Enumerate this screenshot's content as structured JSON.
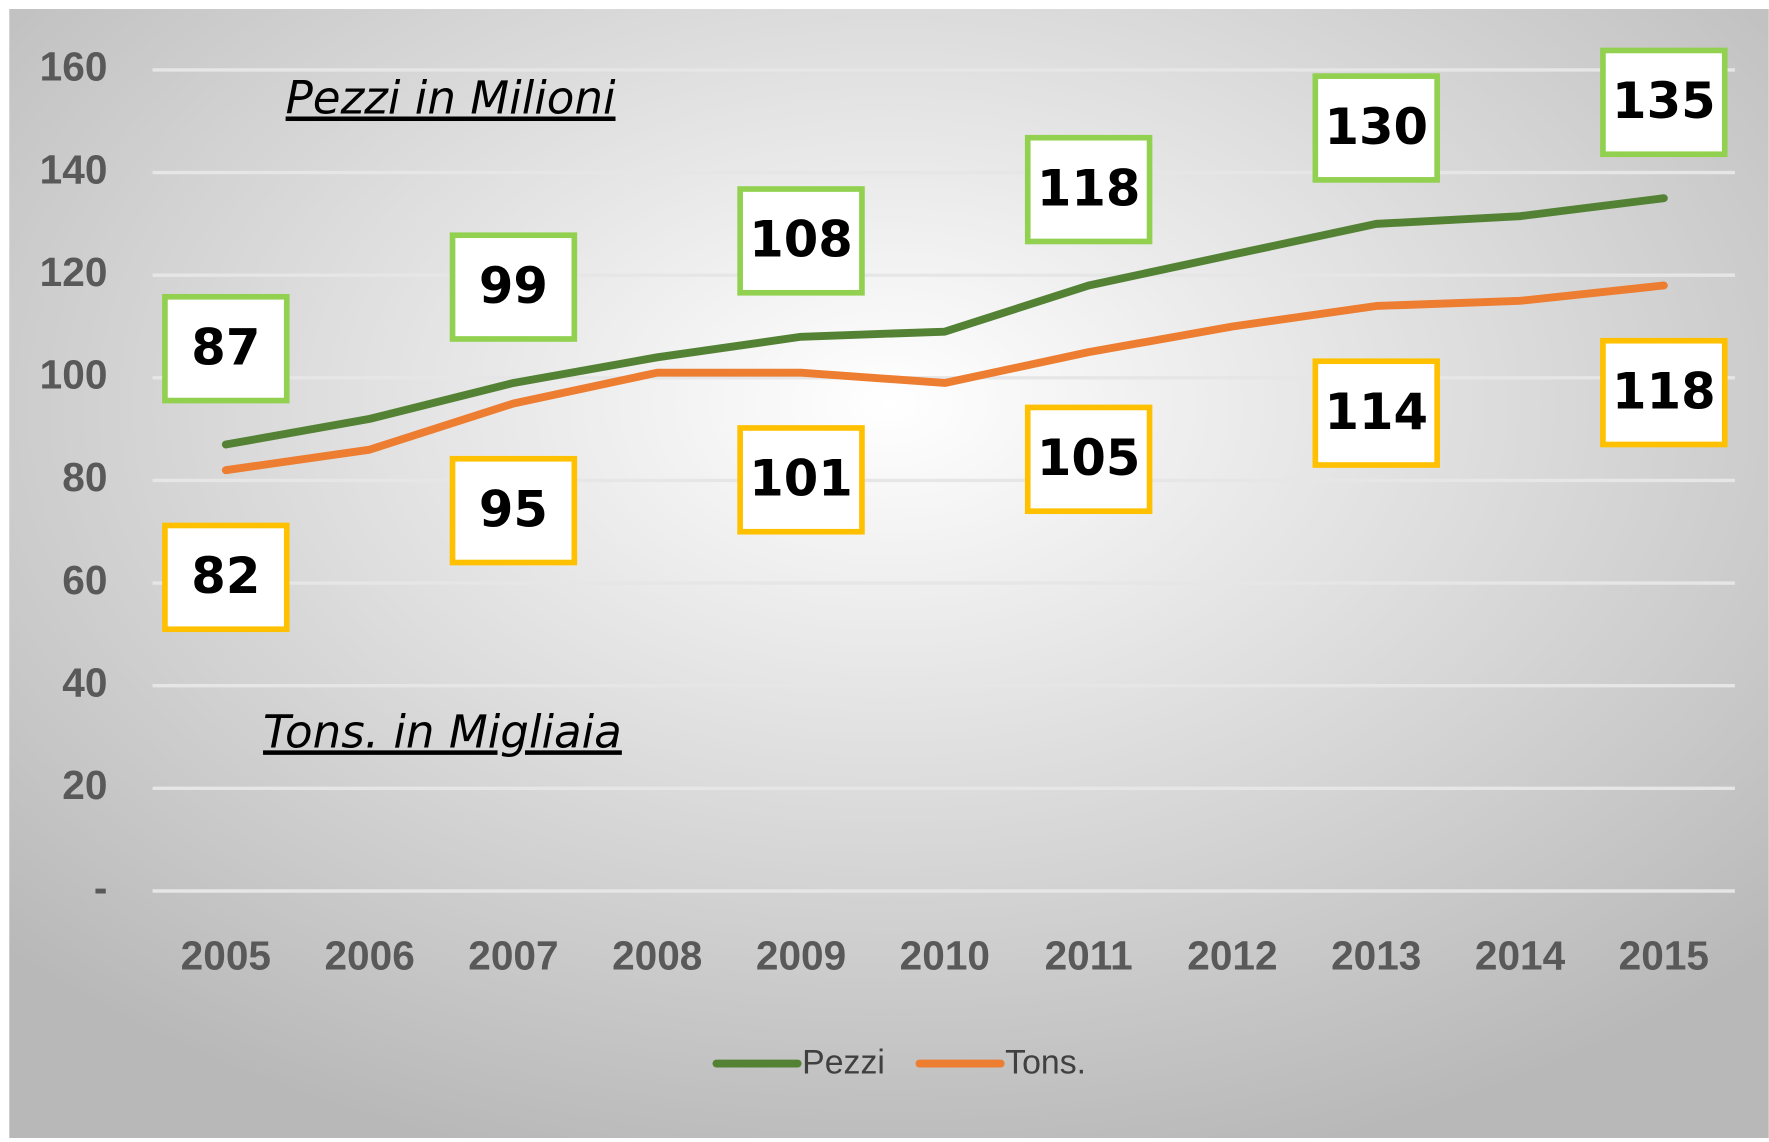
{
  "chart_data": {
    "type": "line",
    "categories": [
      "2005",
      "2006",
      "2007",
      "2008",
      "2009",
      "2010",
      "2011",
      "2012",
      "2013",
      "2014",
      "2015"
    ],
    "series": [
      {
        "name": "Pezzi",
        "color": "#548235",
        "label_border": "#92d050",
        "values": [
          87,
          92,
          99,
          104,
          108,
          109,
          118,
          124,
          130,
          131.5,
          135
        ],
        "value_labels": [
          "87",
          null,
          "99",
          null,
          "108",
          null,
          "118",
          null,
          "130",
          null,
          "135"
        ]
      },
      {
        "name": "Tons.",
        "color": "#ed7d31",
        "label_border": "#ffc000",
        "values": [
          82,
          86,
          95,
          101,
          101,
          99,
          105,
          110,
          114,
          115,
          118
        ],
        "value_labels": [
          "82",
          null,
          "95",
          null,
          "101",
          null,
          "105",
          null,
          "114",
          null,
          "118"
        ]
      }
    ],
    "annotations": [
      "Pezzi in Milioni",
      "Tons. in Migliaia"
    ],
    "ylim": [
      0,
      160
    ],
    "yticks": [
      {
        "value": 0,
        "label": "-"
      },
      20,
      40,
      60,
      80,
      100,
      120,
      140,
      160
    ],
    "grid": true,
    "legend": "bottom"
  }
}
